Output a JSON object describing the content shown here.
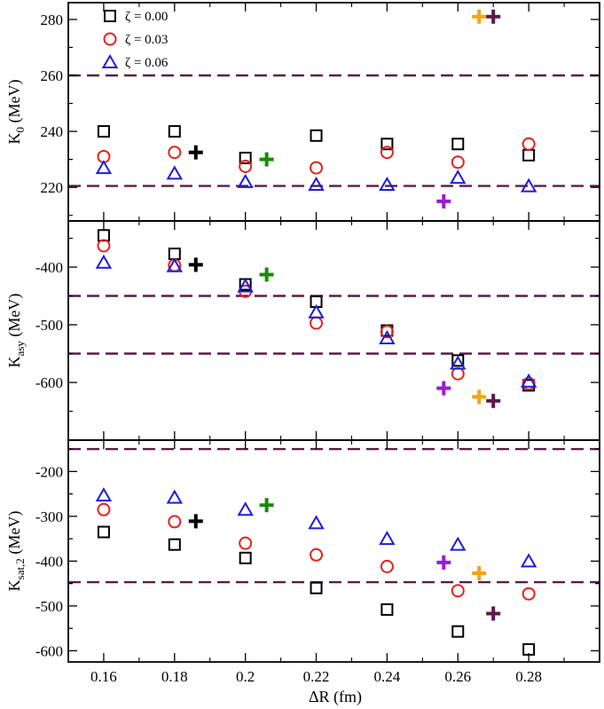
{
  "chart_data": {
    "type": "scatter",
    "xlabel": "ΔR (fm)",
    "xlim": [
      0.15,
      0.3
    ],
    "x_ticks": [
      0.16,
      0.18,
      0.2,
      0.22,
      0.24,
      0.26,
      0.28
    ],
    "x_tick_labels": [
      "0.16",
      "0.18",
      "0.2",
      "0.22",
      "0.24",
      "0.26",
      "0.28"
    ],
    "legend": {
      "position": "top-left",
      "entries": [
        {
          "label": "ζ = 0.00",
          "marker": "square",
          "color": "#000000"
        },
        {
          "label": "ζ = 0.03",
          "marker": "circle",
          "color": "#e8201c"
        },
        {
          "label": "ζ = 0.06",
          "marker": "triangle",
          "color": "#1c1ce0"
        }
      ]
    },
    "panels": [
      {
        "ylabel_main": "K",
        "ylabel_sub": "0",
        "ylabel_unit": " (MeV)",
        "ylim": [
          208,
          286
        ],
        "y_ticks": [
          220,
          240,
          260,
          280
        ],
        "y_tick_labels": [
          "220",
          "240",
          "260",
          "280"
        ],
        "hlines": [
          220.5,
          260
        ],
        "series": [
          {
            "name": "ζ = 0.00",
            "marker": "square",
            "color": "#000000",
            "x": [
              0.16,
              0.18,
              0.2,
              0.22,
              0.24,
              0.26,
              0.28
            ],
            "y": [
              240,
              240,
              230.5,
              238.5,
              235.5,
              235.5,
              231.5
            ]
          },
          {
            "name": "ζ = 0.03",
            "marker": "circle",
            "color": "#e8201c",
            "x": [
              0.16,
              0.18,
              0.2,
              0.22,
              0.24,
              0.26,
              0.28
            ],
            "y": [
              231,
              232.5,
              227.5,
              227,
              232.5,
              229,
              235.5
            ]
          },
          {
            "name": "ζ = 0.06",
            "marker": "triangle",
            "color": "#1c1ce0",
            "x": [
              0.16,
              0.18,
              0.2,
              0.22,
              0.24,
              0.26,
              0.28
            ],
            "y": [
              227,
              225,
              222,
              221,
              221,
              223.5,
              220.5
            ]
          }
        ],
        "crosses": [
          {
            "x": 0.186,
            "y": 232.5,
            "color": "#000000"
          },
          {
            "x": 0.206,
            "y": 230,
            "color": "#1a8a0a"
          },
          {
            "x": 0.256,
            "y": 215,
            "color": "#9a1ad8"
          },
          {
            "x": 0.266,
            "y": 281,
            "color": "#f5a412"
          },
          {
            "x": 0.27,
            "y": 281,
            "color": "#5c1a48"
          }
        ]
      },
      {
        "ylabel_main": "K",
        "ylabel_sub": "asy",
        "ylabel_unit": " (MeV)",
        "ylim": [
          -700,
          -320
        ],
        "y_ticks": [
          -600,
          -500,
          -400
        ],
        "y_tick_labels": [
          "-600",
          "-500",
          "-400"
        ],
        "hlines": [
          -450,
          -550
        ],
        "series": [
          {
            "name": "ζ = 0.00",
            "marker": "square",
            "color": "#000000",
            "x": [
              0.16,
              0.18,
              0.2,
              0.22,
              0.24,
              0.26,
              0.28
            ],
            "y": [
              -345,
              -377,
              -430,
              -460,
              -510,
              -562,
              -605
            ]
          },
          {
            "name": "ζ = 0.03",
            "marker": "circle",
            "color": "#e8201c",
            "x": [
              0.16,
              0.18,
              0.2,
              0.22,
              0.24,
              0.26,
              0.28
            ],
            "y": [
              -363,
              -397,
              -442,
              -497,
              -512,
              -585,
              -602
            ]
          },
          {
            "name": "ζ = 0.06",
            "marker": "triangle",
            "color": "#1c1ce0",
            "x": [
              0.16,
              0.18,
              0.2,
              0.22,
              0.24,
              0.26,
              0.28
            ],
            "y": [
              -392,
              -398,
              -433,
              -478,
              -523,
              -567,
              -598
            ]
          }
        ],
        "crosses": [
          {
            "x": 0.186,
            "y": -396,
            "color": "#000000"
          },
          {
            "x": 0.206,
            "y": -413,
            "color": "#1a8a0a"
          },
          {
            "x": 0.256,
            "y": -610,
            "color": "#9a1ad8"
          },
          {
            "x": 0.266,
            "y": -625,
            "color": "#f5a412"
          },
          {
            "x": 0.27,
            "y": -632,
            "color": "#5c1a48"
          }
        ]
      },
      {
        "ylabel_main": "K",
        "ylabel_sub": "sat,2",
        "ylabel_unit": " (MeV)",
        "ylim": [
          -625,
          -130
        ],
        "y_ticks": [
          -600,
          -500,
          -400,
          -300,
          -200
        ],
        "y_tick_labels": [
          "-600",
          "-500",
          "-400",
          "-300",
          "-200"
        ],
        "hlines": [
          -150,
          -447
        ],
        "series": [
          {
            "name": "ζ = 0.00",
            "marker": "square",
            "color": "#000000",
            "x": [
              0.16,
              0.18,
              0.2,
              0.22,
              0.24,
              0.26,
              0.28
            ],
            "y": [
              -335,
              -363,
              -393,
              -460,
              -508,
              -557,
              -597
            ]
          },
          {
            "name": "ζ = 0.03",
            "marker": "circle",
            "color": "#e8201c",
            "x": [
              0.16,
              0.18,
              0.2,
              0.22,
              0.24,
              0.26,
              0.28
            ],
            "y": [
              -285,
              -312,
              -360,
              -386,
              -412,
              -466,
              -473
            ]
          },
          {
            "name": "ζ = 0.06",
            "marker": "triangle",
            "color": "#1c1ce0",
            "x": [
              0.16,
              0.18,
              0.2,
              0.22,
              0.24,
              0.26,
              0.28
            ],
            "y": [
              -253,
              -258,
              -285,
              -315,
              -350,
              -363,
              -400
            ]
          }
        ],
        "crosses": [
          {
            "x": 0.186,
            "y": -311,
            "color": "#000000"
          },
          {
            "x": 0.206,
            "y": -275,
            "color": "#1a8a0a"
          },
          {
            "x": 0.256,
            "y": -403,
            "color": "#9a1ad8"
          },
          {
            "x": 0.266,
            "y": -427,
            "color": "#f5a412"
          },
          {
            "x": 0.27,
            "y": -517,
            "color": "#5c1a48"
          }
        ]
      }
    ],
    "hline_color": "#5c1a48",
    "grid": false
  }
}
